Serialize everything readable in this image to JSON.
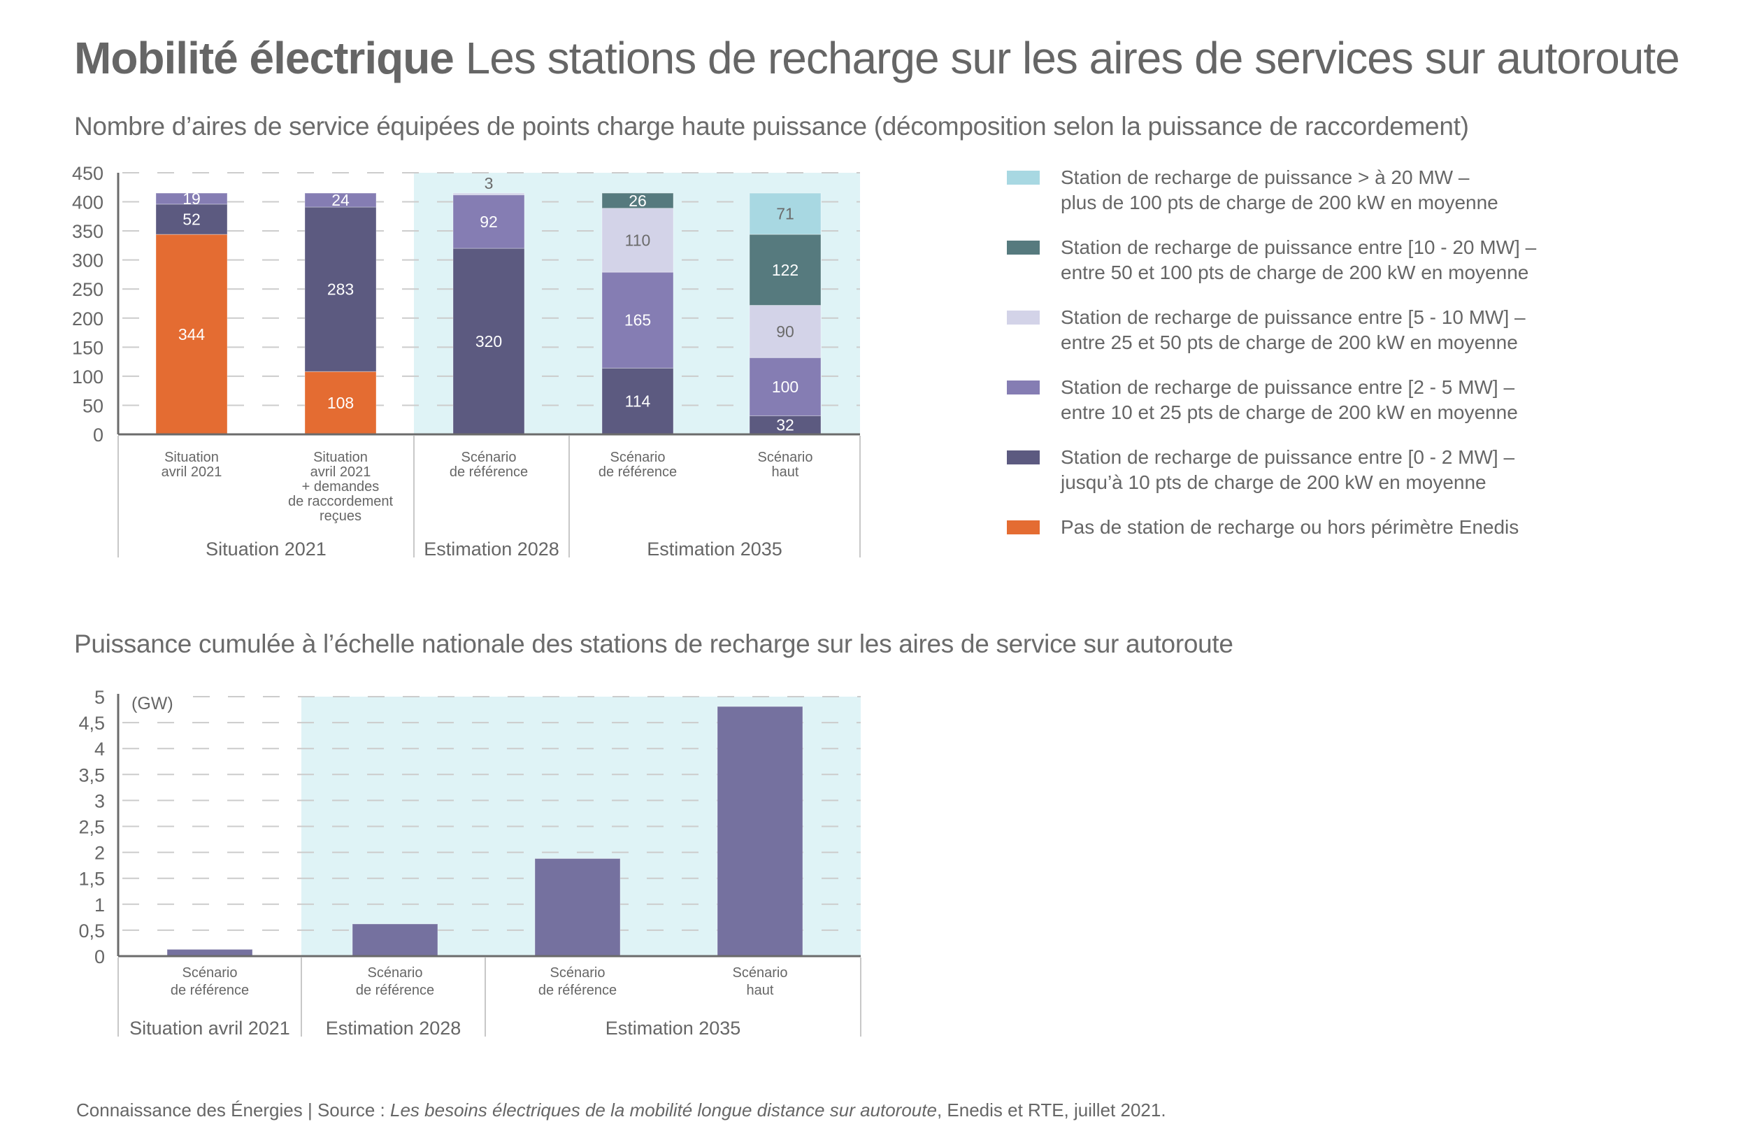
{
  "header": {
    "title_bold": "Mobilité électrique",
    "title_rest": "Les stations de recharge sur les aires de services sur autoroute"
  },
  "colors": {
    "above_20mw": "#a8d8e2",
    "mw_10_20": "#567a7e",
    "mw_5_10": "#d3d3e8",
    "mw_2_5": "#857db3",
    "mw_0_2": "#5c5a80",
    "no_station": "#e46c32",
    "gw_bar": "#75719f",
    "estimation_band": "#dff3f6",
    "axis": "#6b6b6b",
    "grid": "#cccccc",
    "text": "#666666"
  },
  "chart_data": [
    {
      "type": "bar",
      "stacked": true,
      "title": "Nombre d’aires de service équipées de points charge haute puissance (décomposition selon la puissance de raccordement)",
      "xlabel": "",
      "ylabel": "",
      "ylim": [
        0,
        450
      ],
      "yticks": [
        "0",
        "50",
        "100",
        "150",
        "200",
        "250",
        "300",
        "350",
        "400",
        "450"
      ],
      "grid": true,
      "legend_position": "right",
      "categories": [
        [
          "Situation",
          "avril 2021"
        ],
        [
          "Situation",
          "avril 2021",
          "+ demandes",
          "de raccordement",
          "reçues"
        ],
        [
          "Scénario",
          "de référence"
        ],
        [
          "Scénario",
          "de référence"
        ],
        [
          "Scénario",
          "haut"
        ]
      ],
      "groups": [
        {
          "label": "Situation 2021",
          "categories": [
            0,
            1
          ],
          "shaded": false
        },
        {
          "label": "Estimation 2028",
          "categories": [
            2
          ],
          "shaded": true
        },
        {
          "label": "Estimation 2035",
          "categories": [
            3,
            4
          ],
          "shaded": true
        }
      ],
      "series": [
        {
          "key": "no_station",
          "name": "Pas de station de recharge ou hors périmètre Enedis",
          "values": [
            344,
            108,
            0,
            0,
            0
          ]
        },
        {
          "key": "mw_0_2",
          "name": "Station de recharge de puissance entre [0 - 2 MW] –\njusqu’à 10 pts de charge de 200 kW en moyenne",
          "values": [
            52,
            283,
            320,
            114,
            32
          ]
        },
        {
          "key": "mw_2_5",
          "name": "Station de recharge de puissance entre [2 - 5 MW] –\nentre 10 et 25 pts de charge de 200 kW en moyenne",
          "values": [
            19,
            24,
            92,
            165,
            100
          ]
        },
        {
          "key": "mw_5_10",
          "name": "Station de recharge de puissance entre [5 - 10 MW] –\nentre 25 et 50 pts de charge de 200 kW en moyenne",
          "values": [
            0,
            0,
            3,
            110,
            90
          ]
        },
        {
          "key": "mw_10_20",
          "name": "Station de recharge de puissance entre [10 - 20 MW] –\nentre 50 et 100 pts de charge de 200 kW en moyenne",
          "values": [
            0,
            0,
            0,
            26,
            122
          ]
        },
        {
          "key": "above_20mw",
          "name": "Station de recharge de puissance > à 20 MW –\nplus de 100 pts de charge de 200 kW en moyenne",
          "values": [
            0,
            0,
            0,
            0,
            71
          ]
        }
      ],
      "legend_order": [
        "above_20mw",
        "mw_10_20",
        "mw_5_10",
        "mw_2_5",
        "mw_0_2",
        "no_station"
      ]
    },
    {
      "type": "bar",
      "title": "Puissance cumulée à l’échelle nationale des stations de recharge sur les aires de service sur autoroute",
      "xlabel": "",
      "ylabel": "(GW)",
      "ylim": [
        0,
        5
      ],
      "yticks": [
        "0",
        "0,5",
        "1",
        "1,5",
        "2",
        "2,5",
        "3",
        "3,5",
        "4",
        "4,5",
        "5"
      ],
      "grid": true,
      "categories": [
        [
          "Scénario",
          "de référence"
        ],
        [
          "Scénario",
          "de référence"
        ],
        [
          "Scénario",
          "de référence"
        ],
        [
          "Scénario",
          "haut"
        ]
      ],
      "groups": [
        {
          "label": "Situation avril 2021",
          "categories": [
            0
          ],
          "shaded": false
        },
        {
          "label": "Estimation 2028",
          "categories": [
            1
          ],
          "shaded": true
        },
        {
          "label": "Estimation 2035",
          "categories": [
            2,
            3
          ],
          "shaded": true
        }
      ],
      "values": [
        0.13,
        0.62,
        1.88,
        4.81
      ]
    }
  ],
  "footer": {
    "prefix": "Connaissance des Énergies | Source : ",
    "source_title": "Les besoins électriques de la mobilité longue distance sur autoroute",
    "suffix": ", Enedis et RTE, juillet 2021."
  }
}
